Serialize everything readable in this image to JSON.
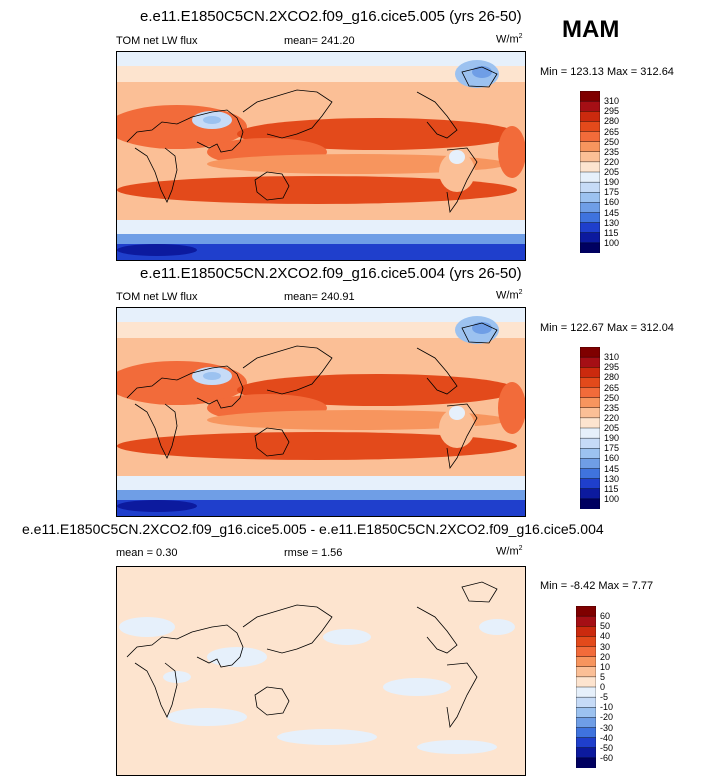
{
  "season": "MAM",
  "units_base": "W/m",
  "units_sup": "2",
  "panels": [
    {
      "title": "e.e11.E1850C5CN.2XCO2.f09_g16.cice5.005 (yrs 26-50)",
      "left_label": "TOM net LW flux",
      "mean_label": "mean= 241.20",
      "minmax": "Min = 123.13 Max = 312.64"
    },
    {
      "title": "e.e11.E1850C5CN.2XCO2.f09_g16.cice5.004 (yrs 26-50)",
      "left_label": "TOM net LW flux",
      "mean_label": "mean= 240.91",
      "minmax": "Min = 122.67 Max = 312.04"
    },
    {
      "title": "e.e11.E1850C5CN.2XCO2.f09_g16.cice5.005 - e.e11.E1850C5CN.2XCO2.f09_g16.cice5.004",
      "left_label": "mean =  0.30",
      "mean_label": "rmse =  1.56",
      "minmax": "Min =  -8.42 Max =   7.77"
    }
  ],
  "chart_data": [
    {
      "type": "heatmap",
      "title": "e.e11.E1850C5CN.2XCO2.f09_g16.cice5.005 (yrs 26-50)",
      "variable": "TOM net LW flux",
      "units": "W/m2",
      "mean": 241.2,
      "min": 123.13,
      "max": 312.64,
      "levels": [
        310,
        295,
        280,
        265,
        250,
        235,
        220,
        205,
        190,
        175,
        160,
        145,
        130,
        115,
        100
      ],
      "colors": [
        "#7f0000",
        "#a50f15",
        "#cb2a0e",
        "#e34a1b",
        "#f26b3a",
        "#f7955e",
        "#fbbf96",
        "#fde4cf",
        "#e6f0fb",
        "#c6dbf7",
        "#9cc2f0",
        "#6f9ee6",
        "#3f73de",
        "#1f3fcc",
        "#0c1a9e",
        "#000060"
      ]
    },
    {
      "type": "heatmap",
      "title": "e.e11.E1850C5CN.2XCO2.f09_g16.cice5.004 (yrs 26-50)",
      "variable": "TOM net LW flux",
      "units": "W/m2",
      "mean": 240.91,
      "min": 122.67,
      "max": 312.04,
      "levels": [
        310,
        295,
        280,
        265,
        250,
        235,
        220,
        205,
        190,
        175,
        160,
        145,
        130,
        115,
        100
      ],
      "colors": [
        "#7f0000",
        "#a50f15",
        "#cb2a0e",
        "#e34a1b",
        "#f26b3a",
        "#f7955e",
        "#fbbf96",
        "#fde4cf",
        "#e6f0fb",
        "#c6dbf7",
        "#9cc2f0",
        "#6f9ee6",
        "#3f73de",
        "#1f3fcc",
        "#0c1a9e",
        "#000060"
      ]
    },
    {
      "type": "heatmap",
      "title": "e.e11.E1850C5CN.2XCO2.f09_g16.cice5.005 - e.e11.E1850C5CN.2XCO2.f09_g16.cice5.004",
      "units": "W/m2",
      "mean": 0.3,
      "rmse": 1.56,
      "min": -8.42,
      "max": 7.77,
      "levels": [
        60,
        50,
        40,
        30,
        20,
        10,
        5,
        0,
        -5,
        -10,
        -20,
        -30,
        -40,
        -50,
        -60
      ],
      "colors": [
        "#7f0000",
        "#a50f15",
        "#cb2a0e",
        "#e34a1b",
        "#f26b3a",
        "#f7955e",
        "#fbbf96",
        "#fde4cf",
        "#e6f0fb",
        "#c6dbf7",
        "#9cc2f0",
        "#6f9ee6",
        "#3f73de",
        "#1f3fcc",
        "#0c1a9e",
        "#000060"
      ]
    }
  ]
}
